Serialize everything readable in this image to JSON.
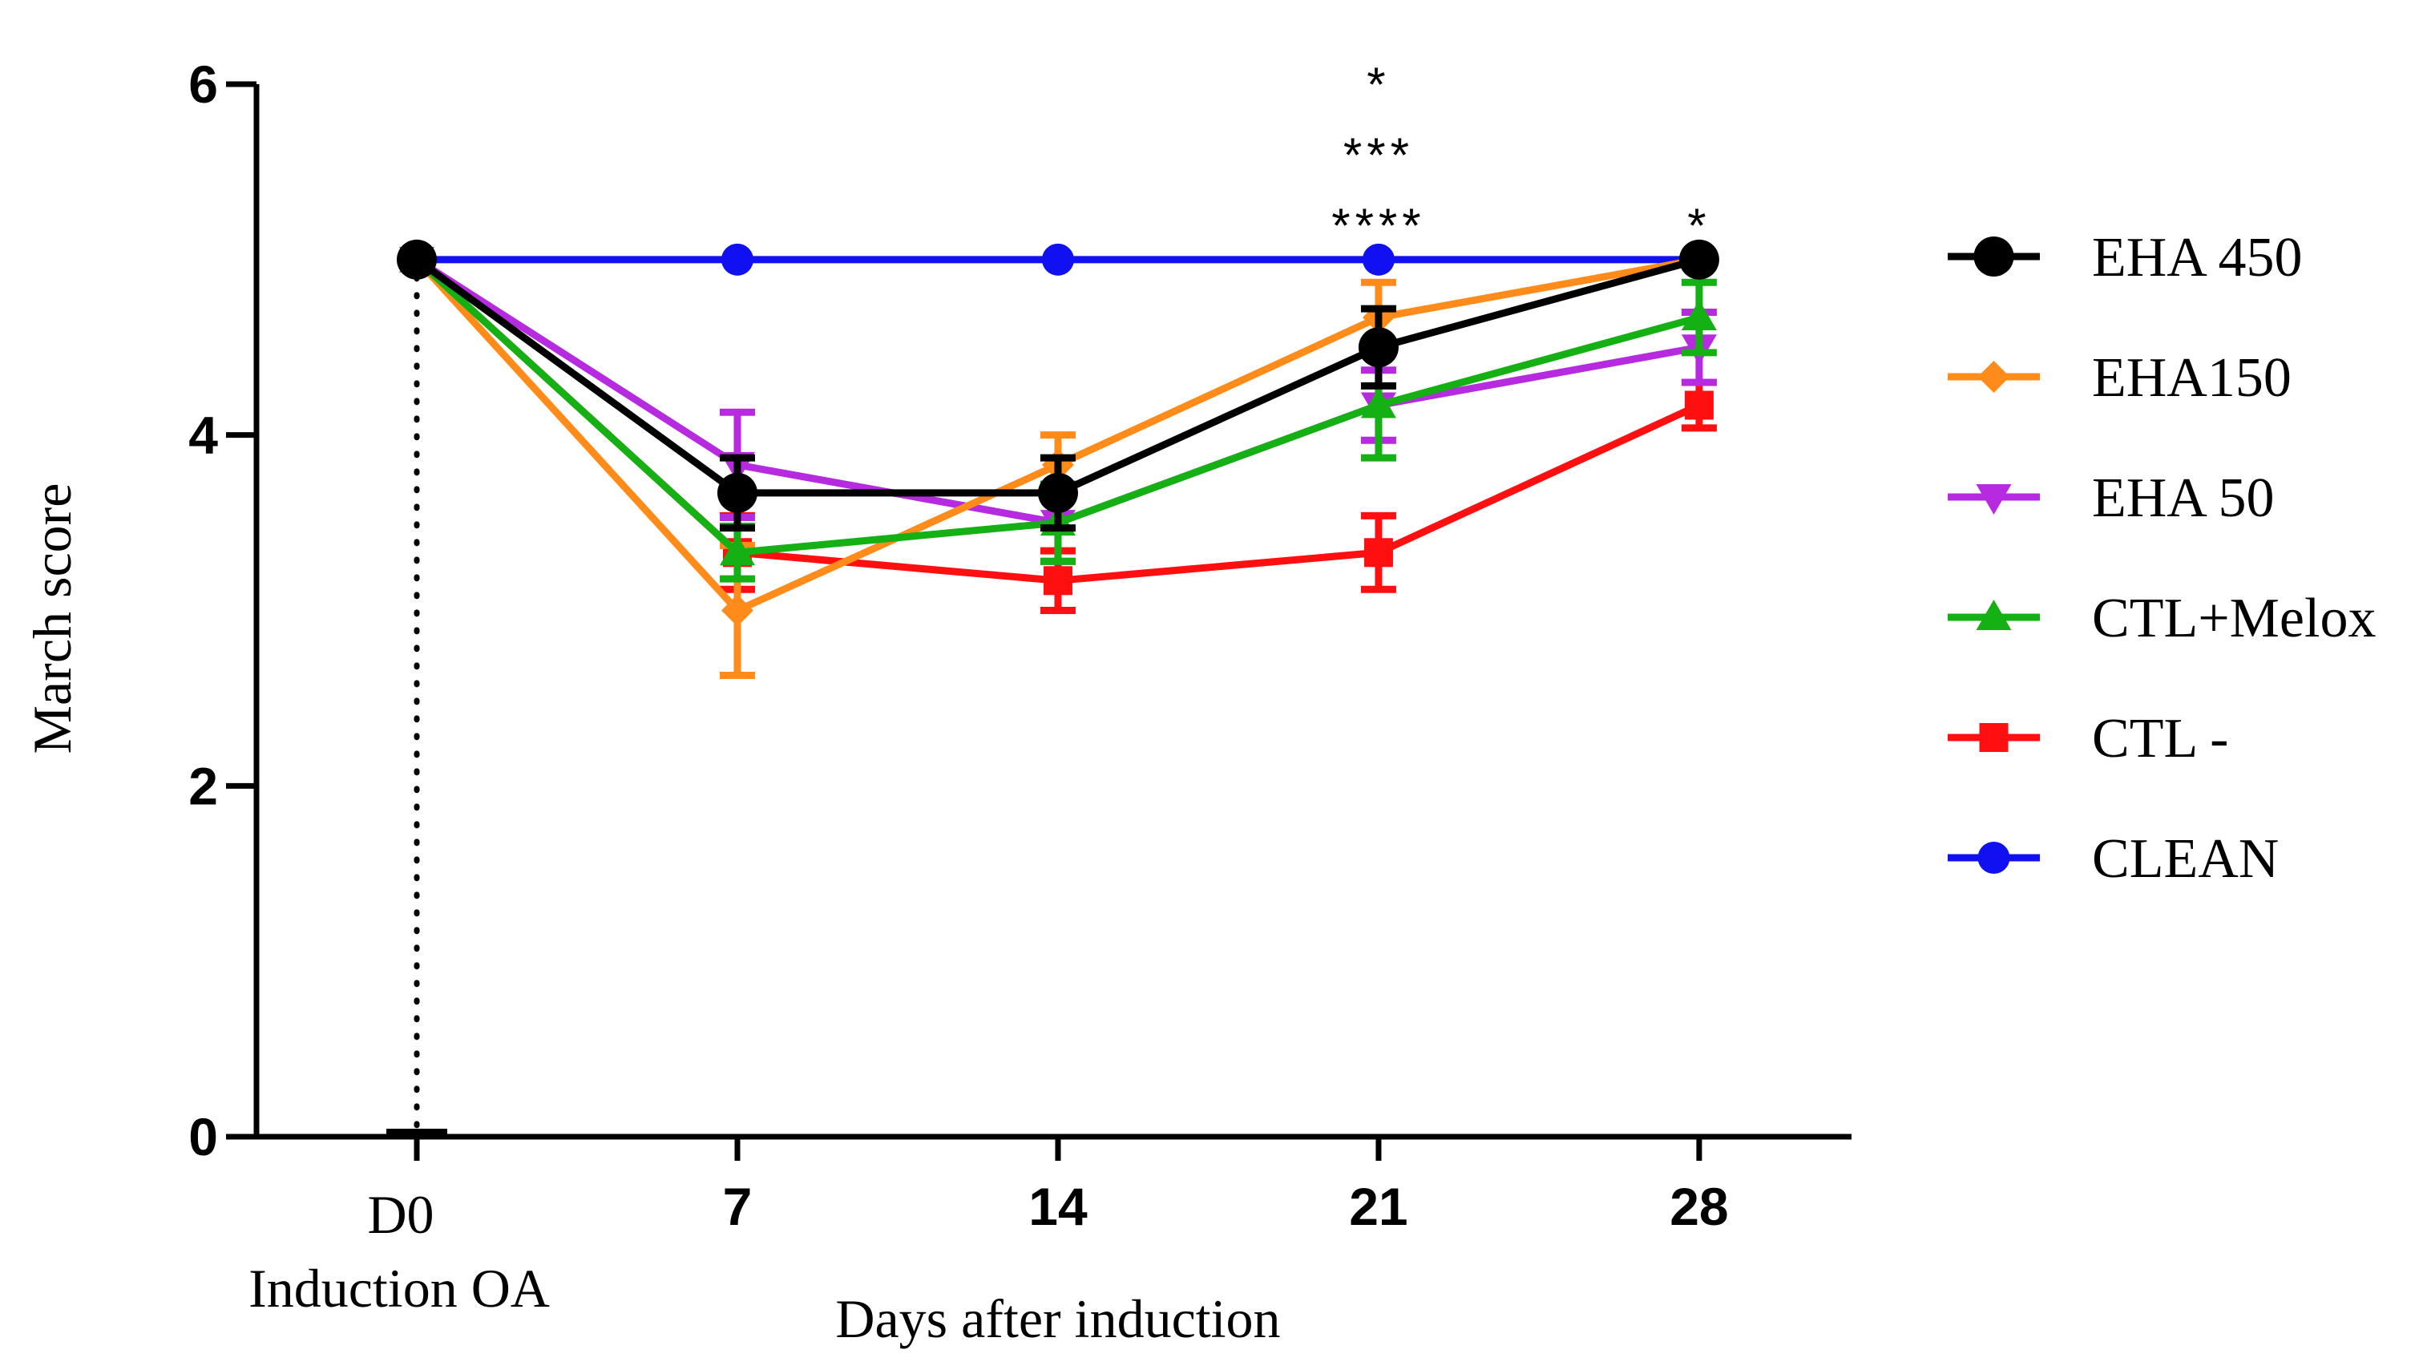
{
  "chart_data": {
    "type": "line",
    "xlabel": "Days after induction",
    "ylabel": "March score",
    "x_tick_labels": [
      {
        "x": 0,
        "lines": [
          "D0",
          "Induction OA"
        ],
        "style": "serif"
      },
      {
        "x": 7,
        "lines": [
          "7"
        ],
        "style": "bold"
      },
      {
        "x": 14,
        "lines": [
          "14"
        ],
        "style": "bold"
      },
      {
        "x": 21,
        "lines": [
          "21"
        ],
        "style": "bold"
      },
      {
        "x": 28,
        "lines": [
          "28"
        ],
        "style": "bold"
      }
    ],
    "y_ticks": [
      0,
      2,
      4,
      6
    ],
    "ylim": [
      0,
      6
    ],
    "xlim": [
      -3.5,
      31.5
    ],
    "grid": false,
    "legend_position": "right",
    "baseline_marker": {
      "x": 0,
      "y": 0
    },
    "series": [
      {
        "name": "CLEAN",
        "color": "#1010f0",
        "marker": "circle",
        "x": [
          0,
          7,
          14,
          21,
          28
        ],
        "y": [
          5,
          5,
          5,
          5,
          5
        ],
        "err": [
          0,
          0,
          0,
          0,
          0
        ]
      },
      {
        "name": "CTL -",
        "color": "#ff0f0f",
        "marker": "square",
        "x": [
          0,
          7,
          14,
          21,
          28
        ],
        "y": [
          5,
          3.33,
          3.17,
          3.33,
          4.17
        ],
        "err": [
          0,
          0.21,
          0.17,
          0.21,
          0.13
        ]
      },
      {
        "name": "EHA 50",
        "color": "#b72be0",
        "marker": "triangle-down",
        "x": [
          0,
          7,
          14,
          21,
          28
        ],
        "y": [
          5,
          3.83,
          3.5,
          4.17,
          4.5
        ],
        "err": [
          0,
          0.3,
          0.22,
          0.2,
          0.2
        ]
      },
      {
        "name": "EHA150",
        "color": "#ff8c1a",
        "marker": "diamond",
        "x": [
          0,
          7,
          14,
          21,
          28
        ],
        "y": [
          5,
          3.0,
          3.83,
          4.67,
          5.0
        ],
        "err": [
          0,
          0.37,
          0.17,
          0.2,
          0
        ]
      },
      {
        "name": "CTL+Melox",
        "color": "#14b014",
        "marker": "triangle-up",
        "x": [
          0,
          7,
          14,
          21,
          28
        ],
        "y": [
          5,
          3.33,
          3.5,
          4.17,
          4.67
        ],
        "err": [
          0,
          0.15,
          0.22,
          0.3,
          0.2
        ]
      },
      {
        "name": "EHA 450",
        "color": "#000000",
        "marker": "circle-big",
        "x": [
          0,
          7,
          14,
          21,
          28
        ],
        "y": [
          5,
          3.67,
          3.67,
          4.5,
          5.0
        ],
        "err": [
          0,
          0.2,
          0.2,
          0.22,
          0
        ]
      }
    ],
    "legend_order": [
      "EHA 450",
      "EHA150",
      "EHA 50",
      "CTL+Melox",
      "CTL -",
      "CLEAN"
    ],
    "annotations": [
      {
        "x": 21,
        "lines": [
          "*",
          "***",
          "****"
        ]
      },
      {
        "x": 28,
        "lines": [
          "*"
        ]
      }
    ]
  }
}
